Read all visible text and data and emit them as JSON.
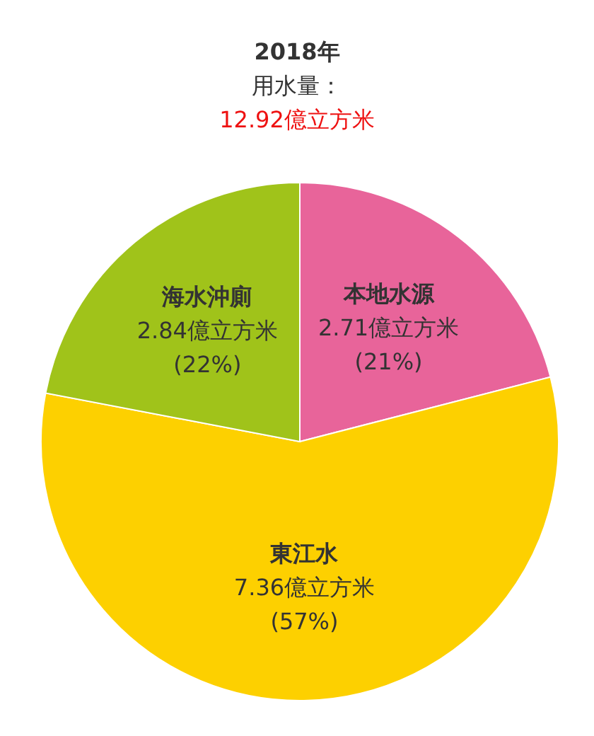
{
  "chart_data": {
    "type": "pie",
    "title": "2018年",
    "subtitle": "用水量：",
    "annotations": [
      "12.92億立方米"
    ],
    "categories": [
      "本地水源",
      "東江水",
      "海水沖廁"
    ],
    "values": [
      2.71,
      7.36,
      2.84
    ],
    "colors": [
      "#e8649a",
      "#fdd000",
      "#a0c31a"
    ],
    "value_labels": [
      "2.71億立方米 (21%)",
      "7.36億立方米 (57%)",
      "2.84億立方米 (22%)"
    ]
  }
}
